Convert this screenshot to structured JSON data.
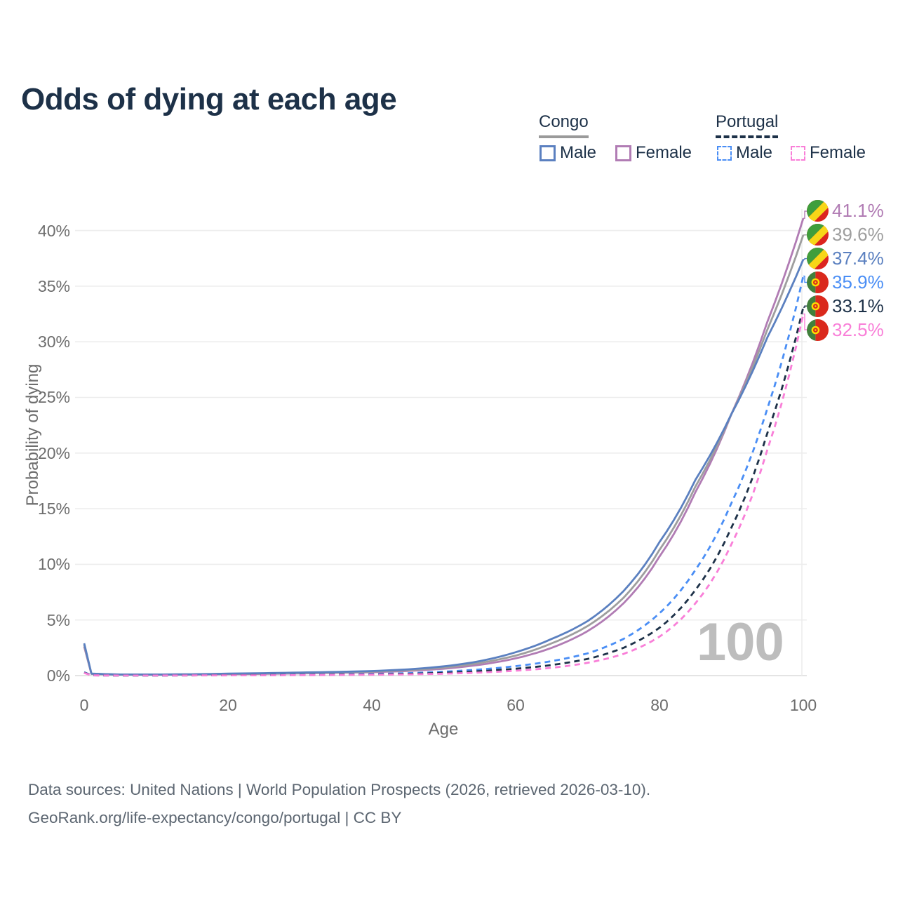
{
  "title": "Odds of dying at each age",
  "legend": {
    "congo": {
      "title": "Congo",
      "male": "Male",
      "female": "Female",
      "underline_color": "#9a9a9a",
      "line_style": "solid"
    },
    "portugal": {
      "title": "Portugal",
      "male": "Male",
      "female": "Female",
      "underline_color": "#1d3148",
      "line_style": "dashed"
    }
  },
  "watermark": {
    "age_label": "100"
  },
  "footer": {
    "line1": "Data sources: United Nations | World Population Prospects (2026, retrieved 2026-03-10).",
    "line2": "GeoRank.org/life-expectancy/congo/portugal | CC BY"
  },
  "colors": {
    "title_text": "#1d3148",
    "axis_text": "#6d6d6d",
    "gridline": "#ededed",
    "zero_gridline": "#dcdcdc",
    "watermark": "#bdbdbd",
    "footer_text": "#5c6671"
  },
  "chart_data": {
    "type": "line",
    "title": "Odds of dying at each age",
    "xlabel": "Age",
    "ylabel": "Probability of dying",
    "x_tick_labels": [
      "0",
      "20",
      "40",
      "60",
      "80",
      "100"
    ],
    "x_ticks": [
      0,
      20,
      40,
      60,
      80,
      100
    ],
    "y_tick_labels": [
      "0%",
      "5%",
      "10%",
      "15%",
      "20%",
      "25%",
      "30%",
      "35%",
      "40%"
    ],
    "y_ticks_percent": [
      0,
      5,
      10,
      15,
      20,
      25,
      30,
      35,
      40
    ],
    "xlim": [
      0,
      100
    ],
    "ylim_percent": [
      0,
      43
    ],
    "grid": "horizontal",
    "legend_position": "top-right",
    "current_age_marker": 100,
    "x": [
      0,
      1,
      5,
      10,
      15,
      20,
      25,
      30,
      35,
      40,
      45,
      50,
      55,
      60,
      65,
      70,
      75,
      80,
      85,
      90,
      95,
      100
    ],
    "series": [
      {
        "id": "congo-female",
        "country": "Congo",
        "sex": "Female",
        "line_style": "solid",
        "color": "#b17cb4",
        "end_label": "41.1%",
        "flag": "congo",
        "values": [
          2.6,
          0.16,
          0.09,
          0.08,
          0.1,
          0.13,
          0.16,
          0.2,
          0.25,
          0.31,
          0.42,
          0.62,
          0.97,
          1.55,
          2.5,
          4.0,
          6.5,
          10.7,
          16.5,
          23.5,
          31.8,
          41.1
        ]
      },
      {
        "id": "congo-both",
        "country": "Congo",
        "sex": "Both",
        "line_style": "solid",
        "color": "#9e9e9e",
        "end_label": "39.6%",
        "flag": "congo",
        "values": [
          2.75,
          0.17,
          0.095,
          0.09,
          0.11,
          0.16,
          0.19,
          0.24,
          0.29,
          0.36,
          0.49,
          0.72,
          1.13,
          1.8,
          2.9,
          4.45,
          7.0,
          11.3,
          17.0,
          23.5,
          31.1,
          39.6
        ]
      },
      {
        "id": "congo-male",
        "country": "Congo",
        "sex": "Male",
        "line_style": "solid",
        "color": "#5b80c0",
        "end_label": "37.4%",
        "flag": "congo",
        "values": [
          2.9,
          0.18,
          0.1,
          0.1,
          0.12,
          0.18,
          0.22,
          0.28,
          0.33,
          0.41,
          0.56,
          0.83,
          1.3,
          2.1,
          3.3,
          4.9,
          7.6,
          12.0,
          17.6,
          23.5,
          30.4,
          37.4
        ]
      },
      {
        "id": "portugal-male",
        "country": "Portugal",
        "sex": "Male",
        "line_style": "dashed",
        "color": "#4a8ef5",
        "end_label": "35.9%",
        "flag": "portugal",
        "values": [
          0.3,
          0.03,
          0.012,
          0.012,
          0.03,
          0.05,
          0.06,
          0.08,
          0.1,
          0.15,
          0.22,
          0.35,
          0.55,
          0.85,
          1.3,
          2.0,
          3.3,
          5.6,
          9.5,
          15.5,
          24.0,
          35.9
        ]
      },
      {
        "id": "portugal-both",
        "country": "Portugal",
        "sex": "Both",
        "line_style": "dashed",
        "color": "#1d3148",
        "end_label": "33.1%",
        "flag": "portugal",
        "values": [
          0.27,
          0.026,
          0.01,
          0.01,
          0.022,
          0.037,
          0.046,
          0.06,
          0.08,
          0.11,
          0.16,
          0.25,
          0.4,
          0.62,
          0.95,
          1.5,
          2.5,
          4.3,
          7.7,
          13.3,
          21.8,
          33.1
        ]
      },
      {
        "id": "portugal-female",
        "country": "Portugal",
        "sex": "Female",
        "line_style": "dashed",
        "color": "#f97fd8",
        "end_label": "32.5%",
        "flag": "portugal",
        "values": [
          0.24,
          0.022,
          0.009,
          0.009,
          0.016,
          0.022,
          0.03,
          0.04,
          0.055,
          0.08,
          0.11,
          0.17,
          0.28,
          0.44,
          0.7,
          1.15,
          1.95,
          3.5,
          6.5,
          11.8,
          20.3,
          32.5
        ]
      }
    ]
  }
}
